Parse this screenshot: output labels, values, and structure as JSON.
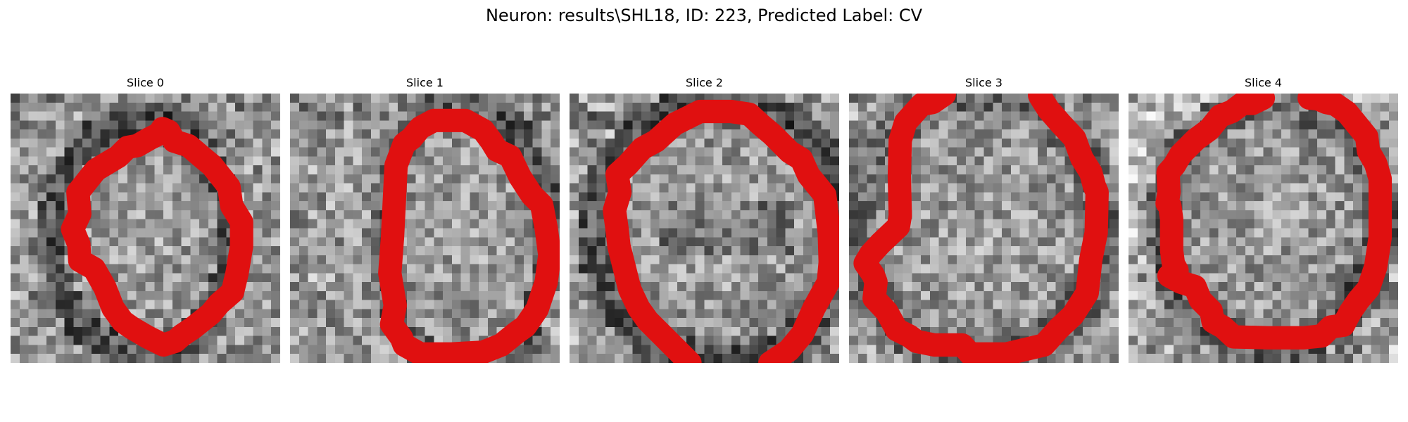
{
  "figure": {
    "title": "Neuron: results\\SHL18, ID: 223, Predicted Label: CV",
    "contour_color": "#e01010",
    "grid_size": 30
  },
  "slices": [
    {
      "title": "Slice 0"
    },
    {
      "title": "Slice 1"
    },
    {
      "title": "Slice 2"
    },
    {
      "title": "Slice 3"
    },
    {
      "title": "Slice 4"
    }
  ]
}
